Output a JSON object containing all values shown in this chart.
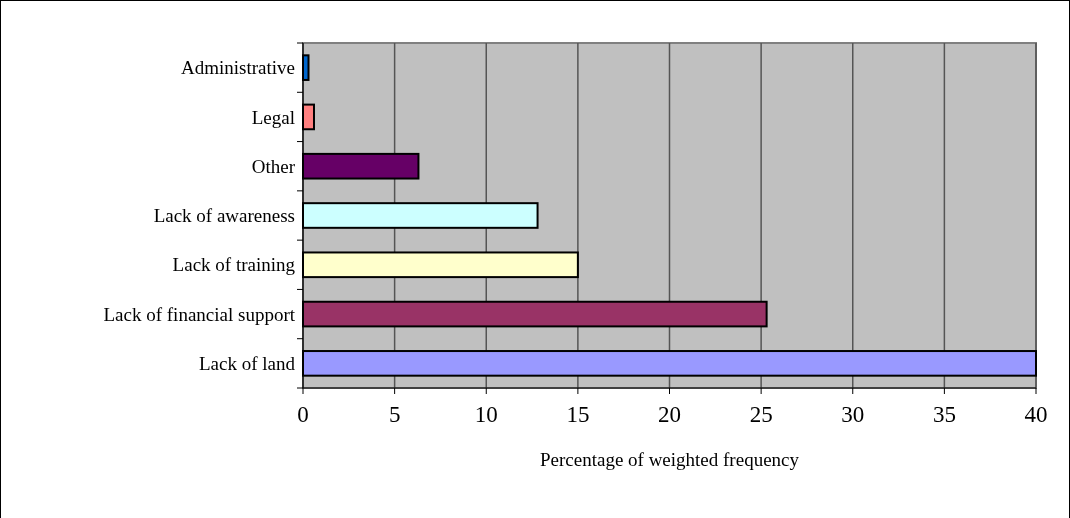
{
  "chart_data": {
    "type": "bar",
    "orientation": "horizontal",
    "xlabel": "Percentage of weighted frequency",
    "categories": [
      "Administrative",
      "Legal",
      "Other",
      "Lack of awareness",
      "Lack of training",
      "Lack of financial support",
      "Lack of land"
    ],
    "values": [
      0.3,
      0.6,
      6.3,
      12.8,
      15.0,
      25.3,
      40.0
    ],
    "colors": [
      "#0066cc",
      "#ff8080",
      "#660066",
      "#ccffff",
      "#ffffcc",
      "#993366",
      "#9999ff"
    ],
    "xlim": [
      0,
      40
    ],
    "xticks": [
      0,
      5,
      10,
      15,
      20,
      25,
      30,
      35,
      40
    ],
    "grid": "x"
  }
}
